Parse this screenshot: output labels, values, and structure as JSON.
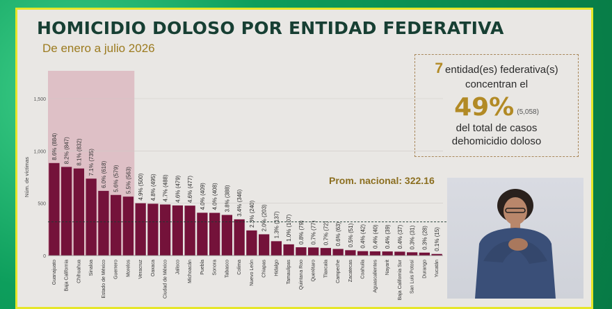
{
  "title": "HOMICIDIO DOLOSO POR ENTIDAD FEDERATIVA",
  "subtitle": "De enero a julio 2026",
  "callout": {
    "count": "7",
    "line1": "entidad(es) federativa(s)",
    "line2": "concentran el",
    "percent": "49%",
    "cases": "(5,058)",
    "line4": "del total de casos",
    "line5": "dehomicidio doloso"
  },
  "average_label": "Prom. nacional: 322.16",
  "colors": {
    "bar": "#74123a",
    "highlight": "#d9b3bc",
    "title": "#173f33",
    "accent": "#b28a25"
  },
  "chart_data": {
    "type": "bar",
    "ylabel": "Núm. de víctimas",
    "ylim": [
      0,
      1500
    ],
    "yticks": [
      "0",
      "500",
      "1,000",
      "1,500"
    ],
    "average": 322.16,
    "categories": [
      "Guanajuato",
      "Baja California",
      "Chihuahua",
      "Sinaloa",
      "Estado de México",
      "Guerrero",
      "Morelos",
      "Veracruz",
      "Oaxaca",
      "Ciudad de México",
      "Jalisco",
      "Michoacán",
      "Puebla",
      "Sonora",
      "Tabasco",
      "Colima",
      "Nuevo León",
      "Chiapas",
      "Hidalgo",
      "Tamaulipas",
      "Quintana Roo",
      "Querétaro",
      "Tlaxcala",
      "Campeche",
      "Zacatecas",
      "Coahuila",
      "Aguascalientes",
      "Nayarit",
      "Baja California Sur",
      "San Luis Potosí",
      "Durango",
      "Yucatán"
    ],
    "values": [
      884,
      847,
      832,
      735,
      618,
      579,
      563,
      500,
      495,
      488,
      479,
      477,
      409,
      408,
      388,
      346,
      240,
      203,
      137,
      107,
      79,
      77,
      72,
      63,
      51,
      42,
      40,
      39,
      37,
      31,
      28,
      15
    ],
    "labels": [
      "8.6% (884)",
      "8.2% (847)",
      "8.1% (832)",
      "7.1% (735)",
      "6.0% (618)",
      "5.6% (579)",
      "5.5% (563)",
      "4.9% (500)",
      "4.8% (495)",
      "4.7% (488)",
      "4.6% (479)",
      "4.6% (477)",
      "4.0% (409)",
      "4.0% (408)",
      "3.8% (388)",
      "3.4% (346)",
      "2.3% (240)",
      "2.0% (203)",
      "1.3% (137)",
      "1.0% (107)",
      "0.8% (79)",
      "0.7% (77)",
      "0.7% (72)",
      "0.6% (63)",
      "0.5% (51)",
      "0.4% (42)",
      "0.4% (40)",
      "0.4% (39)",
      "0.4% (37)",
      "0.3% (31)",
      "0.3% (28)",
      "0.1% (15)"
    ],
    "highlighted_count": 7
  }
}
